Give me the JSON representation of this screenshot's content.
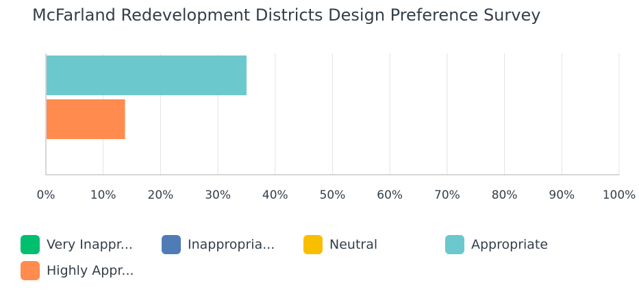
{
  "title": "McFarland Redevelopment Districts Design Preference Survey",
  "chart_data": {
    "type": "bar",
    "orientation": "horizontal",
    "title": "McFarland Redevelopment Districts Design Preference Survey",
    "xlabel": "",
    "ylabel": "",
    "xlim": [
      0,
      100
    ],
    "x_ticks": [
      "0%",
      "10%",
      "20%",
      "30%",
      "40%",
      "50%",
      "60%",
      "70%",
      "80%",
      "90%",
      "100%"
    ],
    "grid": true,
    "legend_position": "bottom",
    "series": [
      {
        "name": "Very Inappr...",
        "value": 0,
        "color": "#00bf6f"
      },
      {
        "name": "Inappropria...",
        "value": 0,
        "color": "#507cb6"
      },
      {
        "name": "Neutral",
        "value": 0,
        "color": "#f9be00"
      },
      {
        "name": "Appropriate",
        "value": 35,
        "color": "#6bc8cd"
      },
      {
        "name": "Highly Appr...",
        "value": 13.8,
        "color": "#ff8b4f"
      }
    ]
  }
}
